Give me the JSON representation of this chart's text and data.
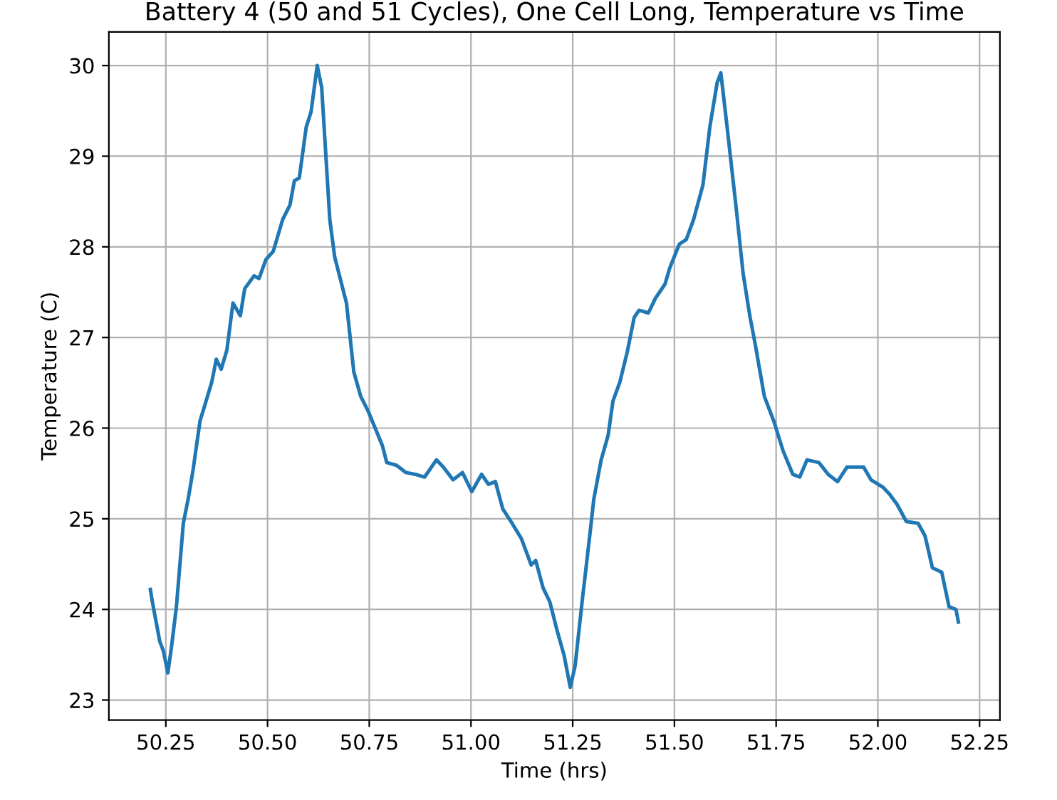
{
  "chart_data": {
    "type": "line",
    "title": "Battery 4 (50 and 51 Cycles), One Cell Long, Temperature vs Time",
    "xlabel": "Time (hrs)",
    "ylabel": "Temperature (C)",
    "x": [
      50.212,
      50.217,
      50.235,
      50.244,
      50.255,
      50.264,
      50.276,
      50.293,
      50.305,
      50.317,
      50.334,
      50.345,
      50.363,
      50.374,
      50.386,
      50.4,
      50.415,
      50.433,
      50.444,
      50.467,
      50.479,
      50.496,
      50.514,
      50.537,
      50.555,
      50.566,
      50.578,
      50.595,
      50.607,
      50.622,
      50.633,
      50.653,
      50.665,
      50.694,
      50.712,
      50.729,
      50.747,
      50.782,
      50.793,
      50.817,
      50.84,
      50.863,
      50.886,
      50.915,
      50.932,
      50.956,
      50.979,
      51.002,
      51.026,
      51.043,
      51.06,
      51.078,
      51.101,
      51.124,
      51.148,
      51.159,
      51.177,
      51.194,
      51.212,
      51.229,
      51.244,
      51.256,
      51.273,
      51.291,
      51.302,
      51.32,
      51.337,
      51.349,
      51.366,
      51.384,
      51.401,
      51.413,
      51.436,
      51.453,
      51.477,
      51.488,
      51.512,
      51.529,
      51.547,
      51.57,
      51.587,
      51.605,
      51.614,
      51.628,
      51.651,
      51.669,
      51.686,
      51.698,
      51.721,
      51.744,
      51.767,
      51.791,
      51.808,
      51.826,
      51.855,
      51.878,
      51.901,
      51.924,
      51.942,
      51.965,
      51.983,
      52.012,
      52.029,
      52.047,
      52.07,
      52.099,
      52.116,
      52.134,
      52.157,
      52.175,
      52.192,
      52.198
    ],
    "series": [
      {
        "color": "#1f77b4",
        "values": [
          24.22,
          24.08,
          23.65,
          23.54,
          23.3,
          23.59,
          24.03,
          24.95,
          25.22,
          25.54,
          26.08,
          26.24,
          26.51,
          26.76,
          26.65,
          26.86,
          27.38,
          27.24,
          27.54,
          27.68,
          27.65,
          27.86,
          27.95,
          28.3,
          28.46,
          28.73,
          28.76,
          29.32,
          29.49,
          30.0,
          29.76,
          28.3,
          27.89,
          27.38,
          26.62,
          26.35,
          26.19,
          25.81,
          25.62,
          25.59,
          25.51,
          25.49,
          25.46,
          25.65,
          25.57,
          25.43,
          25.51,
          25.3,
          25.49,
          25.38,
          25.41,
          25.11,
          24.95,
          24.78,
          24.49,
          24.54,
          24.24,
          24.08,
          23.76,
          23.49,
          23.14,
          23.38,
          24.08,
          24.78,
          25.22,
          25.65,
          25.92,
          26.3,
          26.51,
          26.84,
          27.22,
          27.3,
          27.27,
          27.43,
          27.59,
          27.76,
          28.03,
          28.08,
          28.3,
          28.68,
          29.32,
          29.81,
          29.92,
          29.38,
          28.46,
          27.7,
          27.22,
          26.94,
          26.35,
          26.08,
          25.75,
          25.49,
          25.46,
          25.65,
          25.62,
          25.49,
          25.41,
          25.57,
          25.57,
          25.57,
          25.43,
          25.35,
          25.27,
          25.16,
          24.97,
          24.95,
          24.81,
          24.46,
          24.41,
          24.03,
          24.0,
          23.86
        ]
      }
    ],
    "xlim": [
      50.11,
      52.3
    ],
    "xticks": [
      {
        "value": 50.25,
        "label": "50.25"
      },
      {
        "value": 50.5,
        "label": "50.50"
      },
      {
        "value": 50.75,
        "label": "50.75"
      },
      {
        "value": 51.0,
        "label": "51.00"
      },
      {
        "value": 51.25,
        "label": "51.25"
      },
      {
        "value": 51.5,
        "label": "51.50"
      },
      {
        "value": 51.75,
        "label": "51.75"
      },
      {
        "value": 52.0,
        "label": "52.00"
      },
      {
        "value": 52.25,
        "label": "52.25"
      }
    ],
    "ylim": [
      22.78,
      30.37
    ],
    "yticks": [
      23,
      24,
      25,
      26,
      27,
      28,
      29,
      30
    ],
    "grid": true,
    "line_style": "solid",
    "marker": "none"
  }
}
